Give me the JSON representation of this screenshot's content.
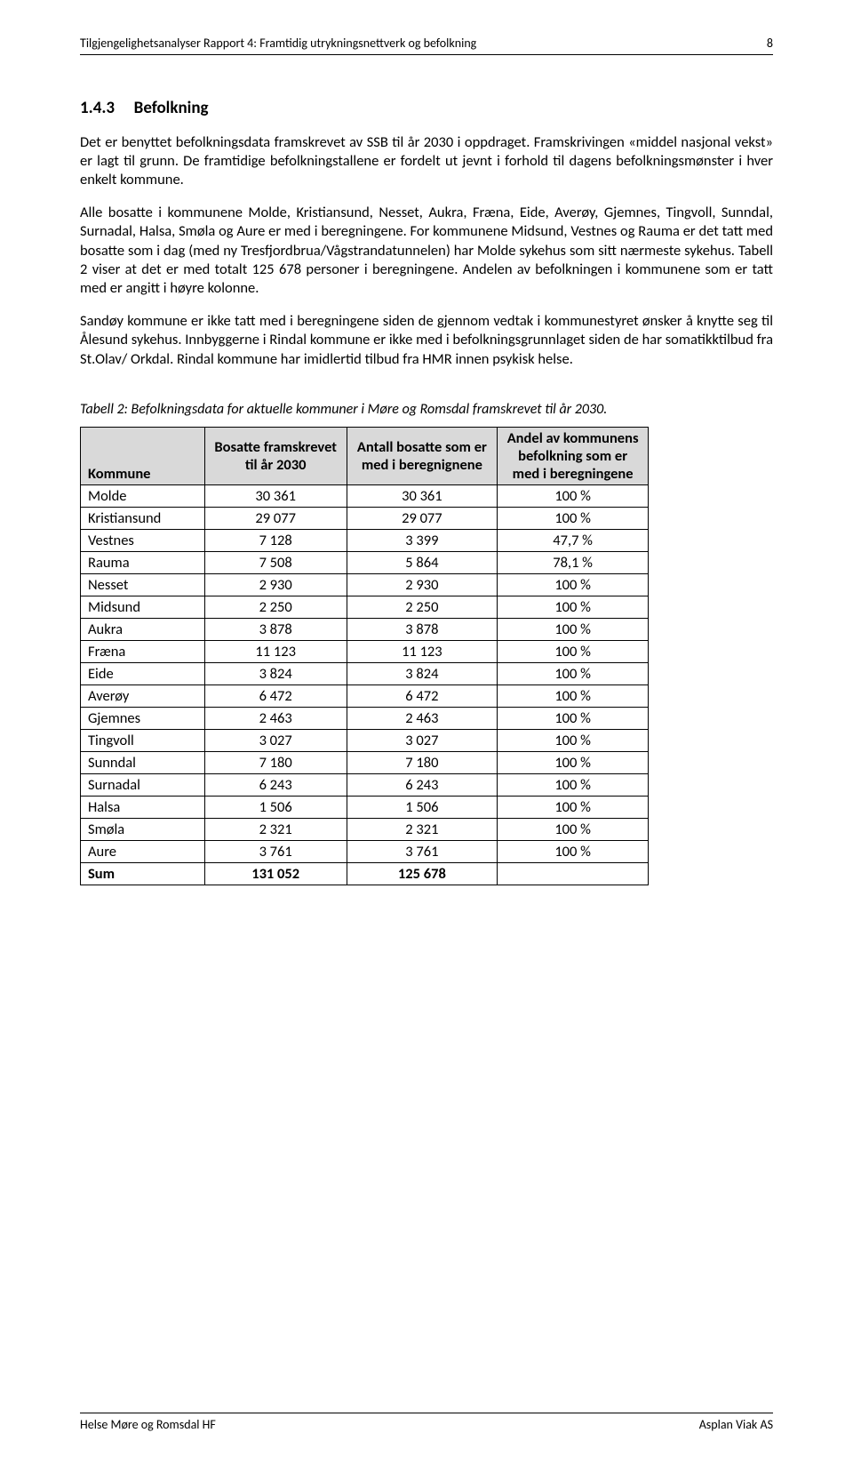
{
  "header": {
    "title": "Tilgjengelighetsanalyser Rapport 4: Framtidig utrykningsnettverk og befolkning",
    "page_number": "8"
  },
  "section": {
    "number": "1.4.3",
    "title": "Befolkning"
  },
  "paragraphs": {
    "p1": "Det er benyttet befolkningsdata framskrevet av SSB til år 2030 i oppdraget. Framskrivingen «middel nasjonal vekst» er lagt til grunn. De framtidige befolkningstallene er fordelt ut jevnt i forhold til dagens befolkningsmønster i hver enkelt kommune.",
    "p2": "Alle bosatte i kommunene Molde, Kristiansund, Nesset, Aukra, Fræna, Eide, Averøy, Gjemnes, Tingvoll, Sunndal, Surnadal, Halsa, Smøla og Aure er med i beregningene. For kommunene Midsund, Vestnes og Rauma er det tatt med bosatte som i dag (med ny Tresfjordbrua/Vågstrandatunnelen) har Molde sykehus som sitt nærmeste sykehus. Tabell 2 viser at det er med totalt 125 678 personer i beregningene. Andelen av befolkningen i kommunene som er tatt med er angitt i høyre kolonne.",
    "p3": "Sandøy kommune er ikke tatt med i beregningene siden de gjennom vedtak i kommunestyret ønsker å knytte seg til Ålesund sykehus. Innbyggerne i Rindal kommune er ikke med i befolkningsgrunnlaget siden de har somatikktilbud fra St.Olav/ Orkdal. Rindal kommune har imidlertid tilbud fra HMR innen psykisk helse."
  },
  "table": {
    "caption": "Tabell 2: Befolkningsdata for aktuelle kommuner i Møre og Romsdal framskrevet til år 2030.",
    "columns": {
      "c0": "Kommune",
      "c1": "Bosatte framskrevet til år 2030",
      "c2": "Antall bosatte som er med i beregnignene",
      "c3": "Andel av kommunens befolkning som er med i beregningene"
    },
    "rows": [
      {
        "name": "Molde",
        "bosatte": "30 361",
        "antall": "30 361",
        "andel": "100 %"
      },
      {
        "name": "Kristiansund",
        "bosatte": "29 077",
        "antall": "29 077",
        "andel": "100 %"
      },
      {
        "name": "Vestnes",
        "bosatte": "7 128",
        "antall": "3 399",
        "andel": "47,7 %"
      },
      {
        "name": "Rauma",
        "bosatte": "7 508",
        "antall": "5 864",
        "andel": "78,1 %"
      },
      {
        "name": "Nesset",
        "bosatte": "2 930",
        "antall": "2 930",
        "andel": "100 %"
      },
      {
        "name": "Midsund",
        "bosatte": "2 250",
        "antall": "2 250",
        "andel": "100 %"
      },
      {
        "name": "Aukra",
        "bosatte": "3 878",
        "antall": "3 878",
        "andel": "100 %"
      },
      {
        "name": "Fræna",
        "bosatte": "11 123",
        "antall": "11 123",
        "andel": "100 %"
      },
      {
        "name": "Eide",
        "bosatte": "3 824",
        "antall": "3 824",
        "andel": "100 %"
      },
      {
        "name": "Averøy",
        "bosatte": "6 472",
        "antall": "6 472",
        "andel": "100 %"
      },
      {
        "name": "Gjemnes",
        "bosatte": "2 463",
        "antall": "2 463",
        "andel": "100 %"
      },
      {
        "name": "Tingvoll",
        "bosatte": "3 027",
        "antall": "3 027",
        "andel": "100 %"
      },
      {
        "name": "Sunndal",
        "bosatte": "7 180",
        "antall": "7 180",
        "andel": "100 %"
      },
      {
        "name": "Surnadal",
        "bosatte": "6 243",
        "antall": "6 243",
        "andel": "100 %"
      },
      {
        "name": "Halsa",
        "bosatte": "1 506",
        "antall": "1 506",
        "andel": "100 %"
      },
      {
        "name": "Smøla",
        "bosatte": "2 321",
        "antall": "2 321",
        "andel": "100 %"
      },
      {
        "name": "Aure",
        "bosatte": "3 761",
        "antall": "3 761",
        "andel": "100 %"
      }
    ],
    "sum": {
      "name": "Sum",
      "bosatte": "131 052",
      "antall": "125 678",
      "andel": ""
    }
  },
  "footer": {
    "left": "Helse Møre og Romsdal HF",
    "right": "Asplan Viak AS"
  }
}
